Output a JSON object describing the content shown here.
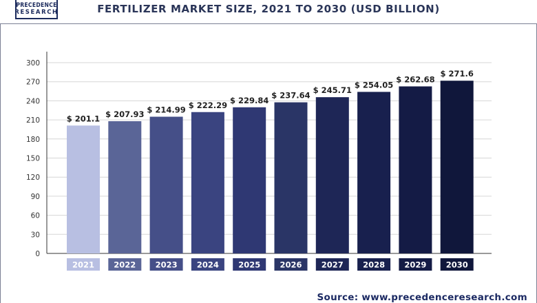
{
  "logo": {
    "line1": "PRECEDENCE",
    "line2": "RESEARCH"
  },
  "source": "Source: www.precedenceresearch.com",
  "colors": {
    "title": "#2a3558",
    "grid": "#d6d6d6",
    "axis": "#333333",
    "bars": [
      "#b8bfe2",
      "#5a6597",
      "#454f88",
      "#3a4480",
      "#2f3873",
      "#2a3566",
      "#1e2656",
      "#18204e",
      "#141b45",
      "#10173b"
    ]
  },
  "chart_data": {
    "type": "bar",
    "title": "FERTILIZER MARKET SIZE, 2021 TO 2030 (USD BILLION)",
    "categories": [
      "2021",
      "2022",
      "2023",
      "2024",
      "2025",
      "2026",
      "2027",
      "2028",
      "2029",
      "2030"
    ],
    "values": [
      201.1,
      207.93,
      214.99,
      222.29,
      229.84,
      237.64,
      245.71,
      254.05,
      262.68,
      271.6
    ],
    "data_labels": [
      "$ 201.1",
      "$ 207.93",
      "$ 214.99",
      "$ 222.29",
      "$ 229.84",
      "$ 237.64",
      "$ 245.71",
      "$ 254.05",
      "$ 262.68",
      "$ 271.6"
    ],
    "y_ticks": [
      "0",
      "30",
      "60",
      "90",
      "120",
      "150",
      "180",
      "210",
      "240",
      "270",
      "300"
    ],
    "ylim": [
      0,
      300
    ],
    "grid": true,
    "xlabel": "",
    "ylabel": ""
  }
}
